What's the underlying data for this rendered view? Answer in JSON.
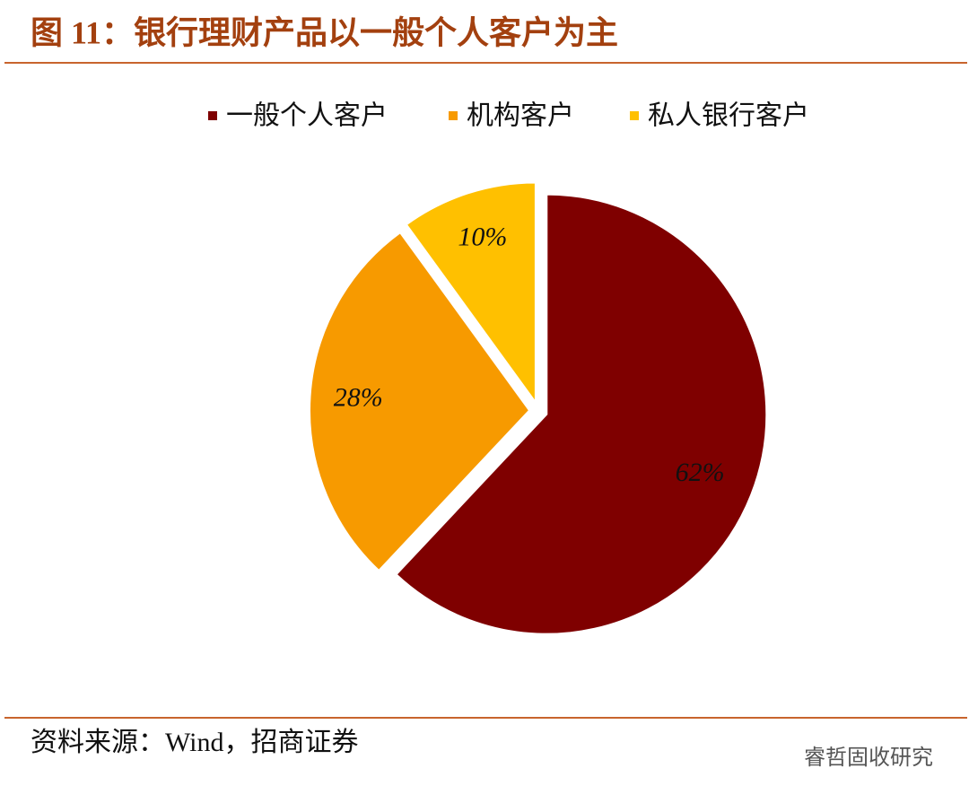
{
  "chart_data": {
    "type": "pie",
    "title": "图 11：银行理财产品以一般个人客户为主",
    "categories": [
      "一般个人客户",
      "机构客户",
      "私人银行客户"
    ],
    "values": [
      62,
      28,
      10
    ],
    "value_labels": [
      "62%",
      "28%",
      "10%"
    ],
    "colors": [
      "#7f0000",
      "#f79a00",
      "#ffc000"
    ],
    "legend": "top",
    "source": "资料来源：Wind，招商证券",
    "watermark": "睿哲固收研究"
  }
}
